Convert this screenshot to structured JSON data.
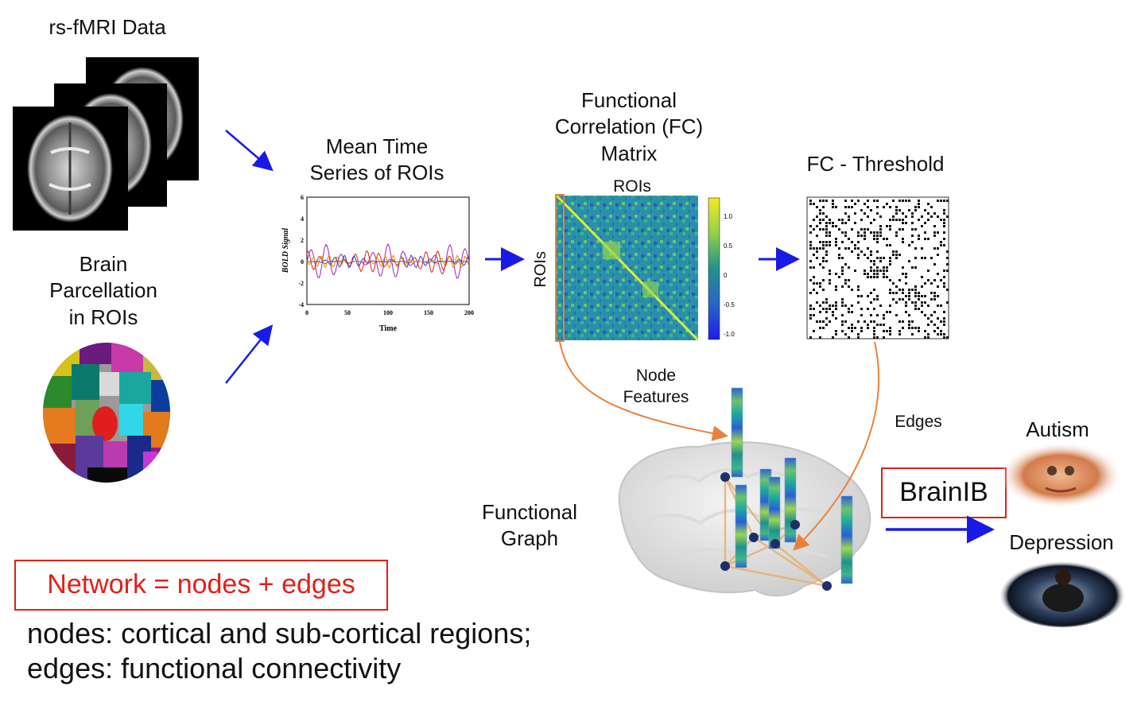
{
  "labels": {
    "rs_fmri": "rs-fMRI Data",
    "brain_parcellation": "Brain\nParcellation\nin ROIs",
    "mean_time_series": "Mean Time\nSeries of ROIs",
    "fc_matrix": "Functional\nCorrelation (FC)\nMatrix",
    "fc_threshold": "FC - Threshold",
    "rois_top": "ROIs",
    "rois_side": "ROIs",
    "node_features": "Node\nFeatures",
    "edges": "Edges",
    "functional_graph": "Functional\nGraph",
    "brainib": "BrainIB",
    "autism": "Autism",
    "depression": "Depression",
    "network_eq": "Network = nodes + edges",
    "nodes_def": "nodes: cortical and sub-cortical regions;",
    "edges_def": "edges: functional connectivity"
  },
  "timeseries_plot": {
    "ylabel": "BOLD Signal",
    "xlabel": "Time",
    "x_ticks": [
      "0",
      "50",
      "100",
      "150",
      "200"
    ],
    "y_ticks": [
      "6",
      "4",
      "2",
      "0",
      "-2",
      "-4"
    ],
    "xlim": [
      0,
      200
    ],
    "ylim": [
      -4,
      6
    ],
    "series_colors": [
      "#a020c0",
      "#e0201b",
      "#1f3fd8",
      "#e08a00"
    ]
  },
  "colorbar": {
    "ticks": [
      "1.0",
      "0.5",
      "0",
      "-0.5",
      "-1.0"
    ],
    "range": [
      -1.0,
      1.0
    ],
    "colors": [
      "#f9e721",
      "#5ec962",
      "#21918c",
      "#2a4db8",
      "#2b2be0"
    ]
  },
  "colors": {
    "arrow_blue": "#1a1ae6",
    "arrow_orange": "#e8823a",
    "highlight_red": "#e0201b"
  },
  "icons": [
    "brain-mri-slice-icon",
    "brain-parcellation-icon",
    "brain-graph-icon",
    "autism-photo-icon",
    "depression-photo-icon"
  ]
}
